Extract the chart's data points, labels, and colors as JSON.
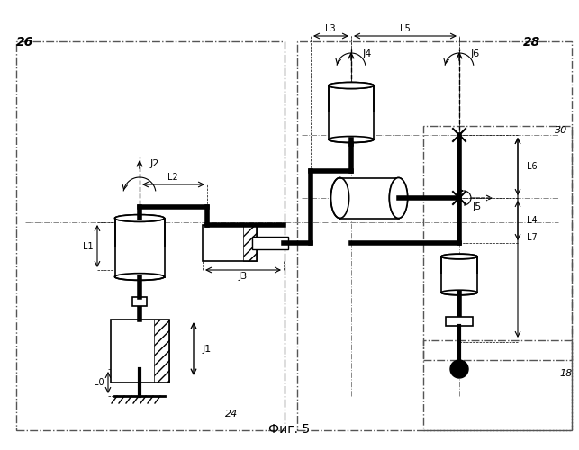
{
  "fig_label": "Фиг. 5",
  "bg_color": "#ffffff",
  "line_color": "#000000",
  "dash_color": "#888888",
  "label_26": "26",
  "label_28": "28",
  "label_24": "24",
  "label_30": "30",
  "label_18": "18",
  "labels_joints": [
    "J1",
    "J2",
    "J3",
    "J4",
    "J5",
    "J6"
  ],
  "labels_links": [
    "L0",
    "L1",
    "L2",
    "L3",
    "L4",
    "L5",
    "L6",
    "L7"
  ]
}
